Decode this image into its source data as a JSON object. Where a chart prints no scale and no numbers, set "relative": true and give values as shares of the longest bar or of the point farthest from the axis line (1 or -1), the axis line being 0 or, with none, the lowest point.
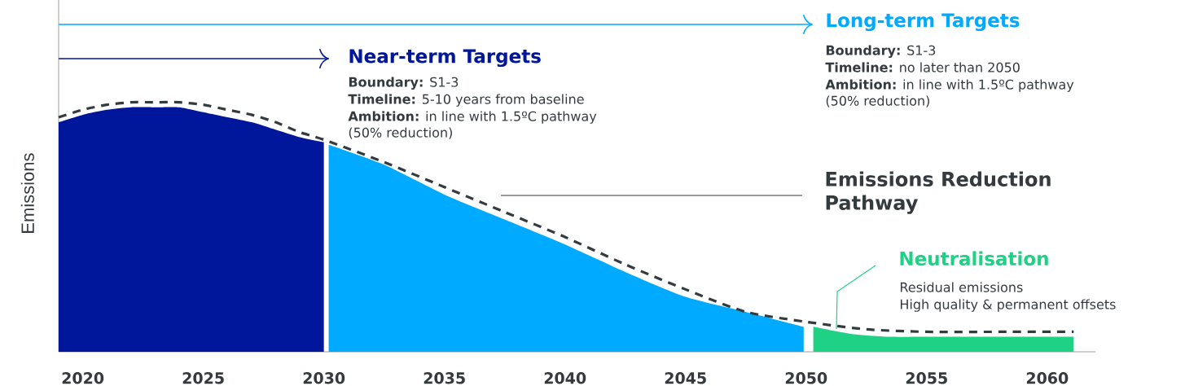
{
  "chart_data": {
    "type": "area",
    "relative": true,
    "ylabel": "Emissions",
    "xlim": [
      2019,
      2062
    ],
    "xticks": [
      2020,
      2025,
      2030,
      2035,
      2040,
      2045,
      2050,
      2055,
      2060
    ],
    "series": [
      {
        "color": "#00169b",
        "x": [
          2019,
          2020,
          2021,
          2022,
          2023,
          2024,
          2025,
          2026,
          2027,
          2028,
          2029,
          2030
        ],
        "values": [
          0.92,
          0.95,
          0.97,
          0.98,
          0.98,
          0.98,
          0.96,
          0.94,
          0.92,
          0.89,
          0.86,
          0.84
        ]
      },
      {
        "color": "#00aaff",
        "x": [
          2030.2,
          2032.5,
          2035,
          2037.5,
          2040,
          2042.5,
          2045,
          2047.5,
          2049.9
        ],
        "values": [
          0.83,
          0.75,
          0.63,
          0.53,
          0.43,
          0.32,
          0.22,
          0.16,
          0.1
        ]
      },
      {
        "color": "#1fd184",
        "x": [
          2050.3,
          2052,
          2053.5,
          2055,
          2058,
          2061.1
        ],
        "values": [
          0.1,
          0.07,
          0.06,
          0.06,
          0.06,
          0.06
        ]
      },
      {
        "type": "line",
        "color": "#333b3f",
        "line_style": "dashed",
        "x": [
          2019,
          2020,
          2021,
          2022,
          2023,
          2024,
          2025,
          2026,
          2027,
          2028,
          2029,
          2030,
          2032.5,
          2035,
          2037.5,
          2040,
          2042.5,
          2045,
          2047.5,
          2050,
          2052.5,
          2055,
          2058,
          2061.1
        ],
        "values": [
          0.94,
          0.97,
          0.99,
          1.0,
          1.0,
          1.0,
          0.99,
          0.97,
          0.95,
          0.92,
          0.88,
          0.85,
          0.76,
          0.66,
          0.56,
          0.46,
          0.35,
          0.25,
          0.16,
          0.12,
          0.09,
          0.08,
          0.08,
          0.08
        ]
      }
    ],
    "annotations": [
      "Near-term Targets",
      "**Boundary:** S1-3",
      "**Timeline:** 5-10 years from baseline",
      "**Ambition:** in line with 1.5ºC pathway",
      "(50% reduction)",
      "Long-term Targets",
      "**Boundary:** S1-3",
      "**Timeline:** no later than 2050",
      "**Ambition:** in line with 1.5ºC pathway",
      "(50% reduction)",
      "Emissions Reduction Pathway",
      "Neutralisation",
      "Residual emissions",
      "High quality & permanent offsets"
    ]
  }
}
